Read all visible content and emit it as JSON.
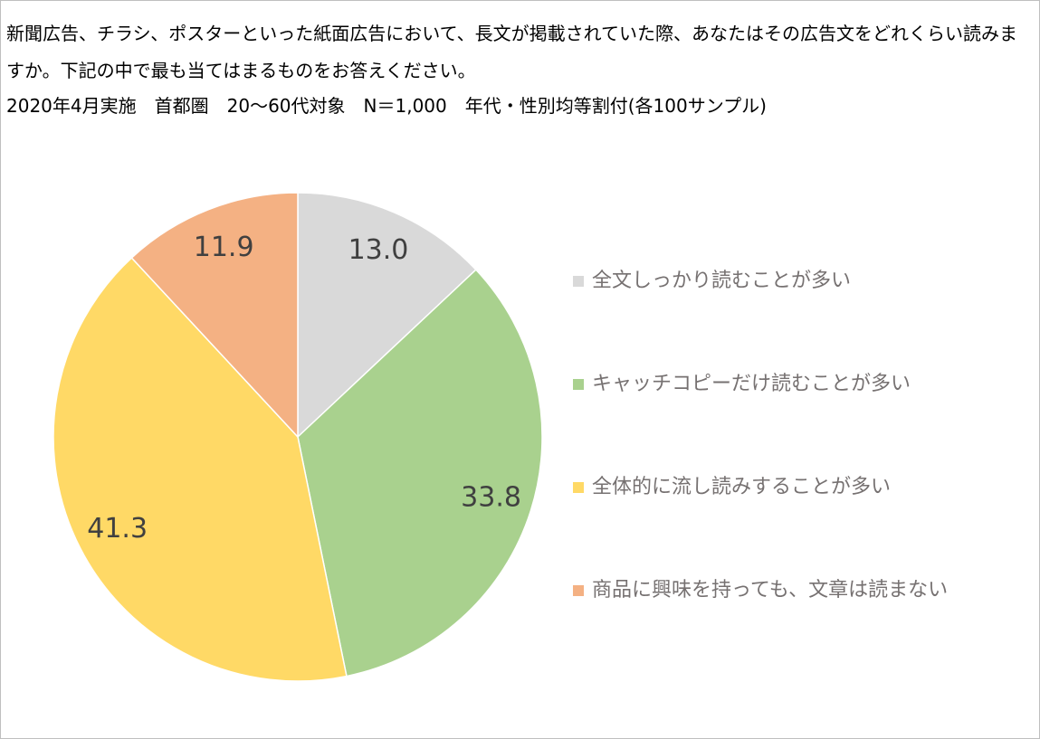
{
  "chart_data": {
    "type": "pie",
    "title": "新聞広告、チラシ、ポスターといった紙面広告において、長文が掲載されていた際、あなたはその広告文をどれくらい読みますか。下記の中で最も当てはまるものをお答えください。",
    "subtitle": "2020年4月実施　首都圏　20～60代対象　N＝1,000　年代・性別均等割付(各100サンプル)",
    "categories": [
      "全文しっかり読むことが多い",
      "キャッチコピーだけ読むことが多い",
      "全体的に流し読みすることが多い",
      "商品に興味を持っても、文章は読まない"
    ],
    "values": [
      13.0,
      33.8,
      41.3,
      11.9
    ],
    "value_labels": [
      "13.0",
      "33.8",
      "41.3",
      "11.9"
    ],
    "colors": [
      "#d9d9d9",
      "#a9d18e",
      "#ffd966",
      "#f4b183"
    ],
    "legend": "right"
  }
}
